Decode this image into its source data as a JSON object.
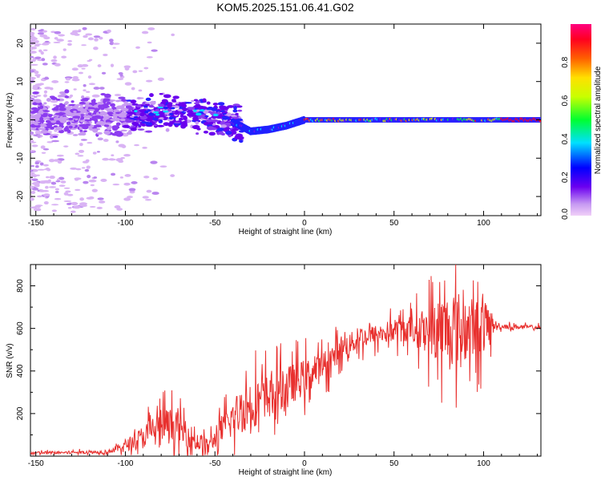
{
  "title": "KOM5.2025.151.06.41.G02",
  "chart_data": [
    {
      "type": "heatmap",
      "xlabel": "Height of straight line (km)",
      "ylabel": "Frequency (Hz)",
      "xlim": [
        -153,
        132
      ],
      "ylim": [
        -25,
        25
      ],
      "xticks": [
        -150,
        -100,
        -50,
        0,
        50,
        100
      ],
      "yticks": [
        -20,
        -10,
        0,
        10,
        20
      ],
      "colorbar": {
        "label": "Normalized spectral amplitude",
        "range": [
          0,
          1
        ],
        "ticks": [
          "0.0",
          "0.2",
          "0.4",
          "0.6",
          "0.8"
        ]
      },
      "ridge": [
        [
          -95,
          1
        ],
        [
          -80,
          2
        ],
        [
          -65,
          1.5
        ],
        [
          -50,
          1
        ],
        [
          -38,
          -1
        ],
        [
          -30,
          -3
        ],
        [
          -20,
          -2.5
        ],
        [
          -10,
          -1.5
        ],
        [
          0,
          0
        ],
        [
          20,
          0
        ],
        [
          50,
          0
        ],
        [
          80,
          0
        ],
        [
          110,
          0
        ],
        [
          132,
          0
        ]
      ]
    },
    {
      "type": "line",
      "xlabel": "Height of straight line (km)",
      "ylabel": "SNR (v/v)",
      "xlim": [
        -153,
        132
      ],
      "ylim": [
        0,
        900
      ],
      "xticks": [
        -150,
        -100,
        -50,
        0,
        50,
        100
      ],
      "yticks": [
        200,
        400,
        600,
        800
      ],
      "color": "#e8302e",
      "envelope": [
        [
          -153,
          15
        ],
        [
          -110,
          20
        ],
        [
          -100,
          50
        ],
        [
          -90,
          90
        ],
        [
          -80,
          150
        ],
        [
          -70,
          130
        ],
        [
          -60,
          70
        ],
        [
          -55,
          40
        ],
        [
          -50,
          80
        ],
        [
          -40,
          180
        ],
        [
          -30,
          250
        ],
        [
          -20,
          280
        ],
        [
          -10,
          330
        ],
        [
          0,
          370
        ],
        [
          10,
          420
        ],
        [
          20,
          500
        ],
        [
          30,
          550
        ],
        [
          40,
          570
        ],
        [
          50,
          590
        ],
        [
          60,
          600
        ],
        [
          70,
          590
        ],
        [
          80,
          600
        ],
        [
          90,
          600
        ],
        [
          100,
          600
        ],
        [
          105,
          610
        ],
        [
          132,
          605
        ]
      ],
      "spread": [
        [
          -153,
          10
        ],
        [
          -110,
          12
        ],
        [
          -100,
          40
        ],
        [
          -85,
          120
        ],
        [
          -75,
          140
        ],
        [
          -60,
          80
        ],
        [
          -50,
          70
        ],
        [
          -40,
          160
        ],
        [
          -30,
          200
        ],
        [
          -15,
          160
        ],
        [
          0,
          140
        ],
        [
          20,
          90
        ],
        [
          40,
          80
        ],
        [
          60,
          100
        ],
        [
          75,
          250
        ],
        [
          85,
          300
        ],
        [
          100,
          200
        ],
        [
          104,
          150
        ],
        [
          106,
          20
        ],
        [
          132,
          15
        ]
      ]
    }
  ]
}
